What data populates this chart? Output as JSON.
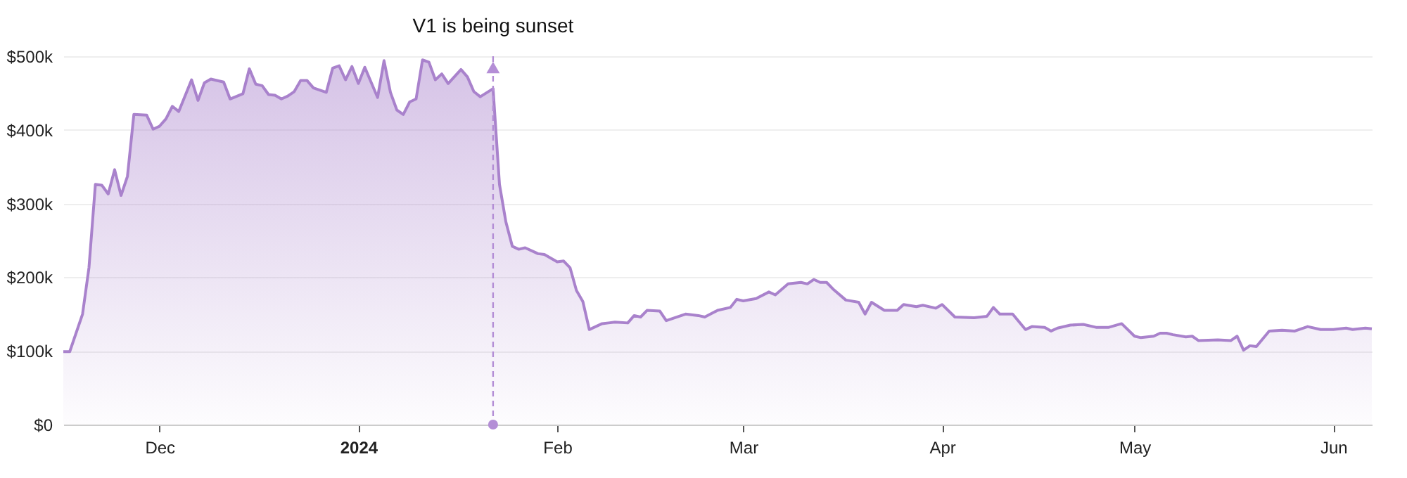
{
  "chart_data": {
    "type": "area",
    "x": [
      "2023-11-16",
      "2023-11-17",
      "2023-11-19",
      "2023-11-20",
      "2023-11-21",
      "2023-11-22",
      "2023-11-23",
      "2023-11-24",
      "2023-11-25",
      "2023-11-26",
      "2023-11-27",
      "2023-11-29",
      "2023-11-30",
      "2023-12-01",
      "2023-12-02",
      "2023-12-03",
      "2023-12-04",
      "2023-12-06",
      "2023-12-07",
      "2023-12-08",
      "2023-12-09",
      "2023-12-11",
      "2023-12-12",
      "2023-12-14",
      "2023-12-15",
      "2023-12-16",
      "2023-12-17",
      "2023-12-18",
      "2023-12-19",
      "2023-12-20",
      "2023-12-21",
      "2023-12-22",
      "2023-12-23",
      "2023-12-24",
      "2023-12-25",
      "2023-12-27",
      "2023-12-28",
      "2023-12-29",
      "2023-12-30",
      "2023-12-31",
      "2024-01-01",
      "2024-01-02",
      "2024-01-04",
      "2024-01-05",
      "2024-01-06",
      "2024-01-07",
      "2024-01-08",
      "2024-01-09",
      "2024-01-10",
      "2024-01-11",
      "2024-01-12",
      "2024-01-13",
      "2024-01-14",
      "2024-01-15",
      "2024-01-17",
      "2024-01-18",
      "2024-01-19",
      "2024-01-20",
      "2024-01-22",
      "2024-01-23",
      "2024-01-24",
      "2024-01-25",
      "2024-01-26",
      "2024-01-27",
      "2024-01-29",
      "2024-01-30",
      "2024-02-01",
      "2024-02-02",
      "2024-02-03",
      "2024-02-04",
      "2024-02-05",
      "2024-02-06",
      "2024-02-08",
      "2024-02-09",
      "2024-02-10",
      "2024-02-12",
      "2024-02-13",
      "2024-02-14",
      "2024-02-15",
      "2024-02-17",
      "2024-02-18",
      "2024-02-21",
      "2024-02-23",
      "2024-02-24",
      "2024-02-26",
      "2024-02-28",
      "2024-02-29",
      "2024-03-01",
      "2024-03-03",
      "2024-03-05",
      "2024-03-06",
      "2024-03-08",
      "2024-03-10",
      "2024-03-11",
      "2024-03-12",
      "2024-03-13",
      "2024-03-14",
      "2024-03-15",
      "2024-03-17",
      "2024-03-19",
      "2024-03-20",
      "2024-03-21",
      "2024-03-23",
      "2024-03-25",
      "2024-03-26",
      "2024-03-28",
      "2024-03-29",
      "2024-03-31",
      "2024-04-01",
      "2024-04-03",
      "2024-04-06",
      "2024-04-08",
      "2024-04-09",
      "2024-04-10",
      "2024-04-12",
      "2024-04-14",
      "2024-04-15",
      "2024-04-17",
      "2024-04-18",
      "2024-04-19",
      "2024-04-21",
      "2024-04-23",
      "2024-04-25",
      "2024-04-27",
      "2024-04-29",
      "2024-05-01",
      "2024-05-02",
      "2024-05-04",
      "2024-05-05",
      "2024-05-06",
      "2024-05-07",
      "2024-05-09",
      "2024-05-10",
      "2024-05-11",
      "2024-05-14",
      "2024-05-16",
      "2024-05-17",
      "2024-05-18",
      "2024-05-19",
      "2024-05-20",
      "2024-05-22",
      "2024-05-24",
      "2024-05-26",
      "2024-05-28",
      "2024-05-30",
      "2024-06-01",
      "2024-06-03",
      "2024-06-04",
      "2024-06-06",
      "2024-06-07"
    ],
    "series": [
      {
        "color": "#a982cc",
        "values": [
          99000,
          99000,
          150000,
          213000,
          326000,
          325000,
          313000,
          346000,
          311000,
          337000,
          421000,
          420000,
          401000,
          405000,
          415000,
          432000,
          425000,
          468000,
          440000,
          464000,
          469000,
          465000,
          442000,
          449000,
          483000,
          462000,
          460000,
          448000,
          447000,
          442000,
          446000,
          452000,
          467000,
          467000,
          457000,
          451000,
          484000,
          487000,
          468000,
          486000,
          463000,
          485000,
          444000,
          494000,
          451000,
          427000,
          421000,
          438000,
          442000,
          495000,
          492000,
          468000,
          476000,
          463000,
          482000,
          472000,
          452000,
          445000,
          456000,
          326000,
          275000,
          242000,
          238000,
          240000,
          232000,
          231000,
          221000,
          222000,
          213000,
          182000,
          167000,
          129000,
          137000,
          138000,
          139000,
          138000,
          148000,
          146000,
          155000,
          154000,
          141000,
          150000,
          148000,
          146000,
          155000,
          159000,
          170000,
          168000,
          171000,
          180000,
          176000,
          191000,
          193000,
          191000,
          197000,
          193000,
          193000,
          184000,
          169000,
          166000,
          150000,
          166000,
          155000,
          155000,
          163000,
          160000,
          162000,
          158000,
          163000,
          146000,
          145000,
          147000,
          159000,
          150000,
          150000,
          129000,
          133000,
          132000,
          127000,
          131000,
          135000,
          136000,
          132000,
          132000,
          137000,
          120000,
          118000,
          120000,
          124000,
          124000,
          122000,
          119000,
          120000,
          114000,
          115000,
          114000,
          120000,
          101000,
          107000,
          106000,
          127000,
          128000,
          127000,
          133000,
          129000,
          129000,
          131000,
          129000,
          131000,
          130000
        ]
      }
    ],
    "xlim": [
      "2023-11-16",
      "2024-06-07"
    ],
    "xticks": [
      {
        "value": "2023-12-01",
        "label": "Dec"
      },
      {
        "value": "2024-01-01",
        "label": "2024"
      },
      {
        "value": "2024-02-01",
        "label": "Feb"
      },
      {
        "value": "2024-03-01",
        "label": "Mar"
      },
      {
        "value": "2024-04-01",
        "label": "Apr"
      },
      {
        "value": "2024-05-01",
        "label": "May"
      },
      {
        "value": "2024-06-01",
        "label": "Jun"
      }
    ],
    "ylim": [
      0,
      500000
    ],
    "yticks": [
      {
        "value": 0,
        "label": "$0"
      },
      {
        "value": 100000,
        "label": "$100k"
      },
      {
        "value": 200000,
        "label": "$200k"
      },
      {
        "value": 300000,
        "label": "$300k"
      },
      {
        "value": 400000,
        "label": "$400k"
      },
      {
        "value": 500000,
        "label": "$500k"
      }
    ],
    "ref_lines": [
      {
        "axis": "x",
        "value": "2024-01-22",
        "label": "V1 is being sunset",
        "color": "#b48ed6",
        "line_style": "dashed"
      }
    ],
    "grid": "y"
  }
}
